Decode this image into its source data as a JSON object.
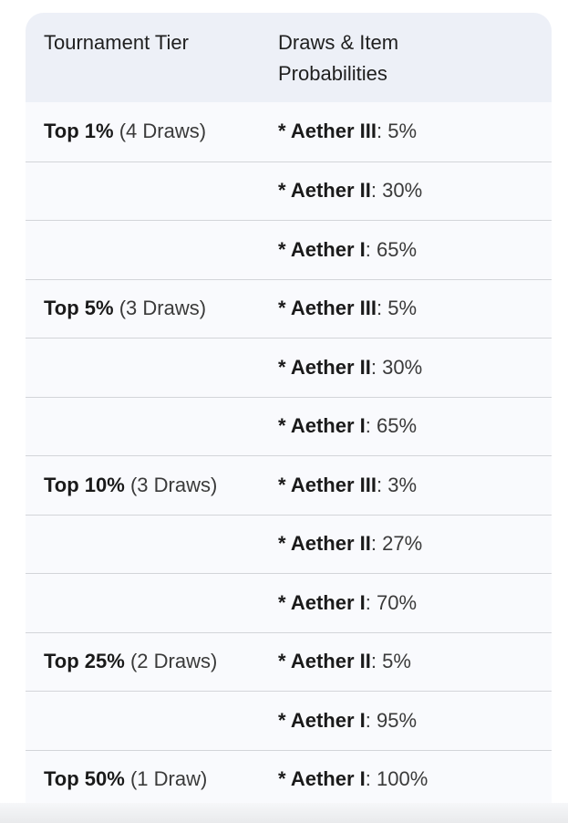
{
  "table": {
    "headers": [
      "Tournament Tier",
      "Draws & Item Probabilities"
    ],
    "rows": [
      {
        "tier": "Top 1%",
        "draws": "(4 Draws)",
        "item": "* Aether III",
        "prob": ": 5%"
      },
      {
        "tier": "",
        "draws": "",
        "item": "* Aether II",
        "prob": ": 30%"
      },
      {
        "tier": "",
        "draws": "",
        "item": "* Aether I",
        "prob": ": 65%"
      },
      {
        "tier": "Top 5%",
        "draws": "(3 Draws)",
        "item": "* Aether III",
        "prob": ": 5%"
      },
      {
        "tier": "",
        "draws": "",
        "item": "* Aether II",
        "prob": ": 30%"
      },
      {
        "tier": "",
        "draws": "",
        "item": "* Aether I",
        "prob": ": 65%"
      },
      {
        "tier": "Top 10%",
        "draws": "(3 Draws)",
        "item": "* Aether III",
        "prob": ": 3%"
      },
      {
        "tier": "",
        "draws": "",
        "item": "* Aether II",
        "prob": ": 27%"
      },
      {
        "tier": "",
        "draws": "",
        "item": "* Aether I",
        "prob": ": 70%"
      },
      {
        "tier": "Top 25%",
        "draws": "(2 Draws)",
        "item": "* Aether II",
        "prob": ": 5%"
      },
      {
        "tier": "",
        "draws": "",
        "item": "* Aether I",
        "prob": ": 95%"
      },
      {
        "tier": "Top 50%",
        "draws": "(1 Draw)",
        "item": "* Aether I",
        "prob": ": 100%"
      }
    ]
  }
}
